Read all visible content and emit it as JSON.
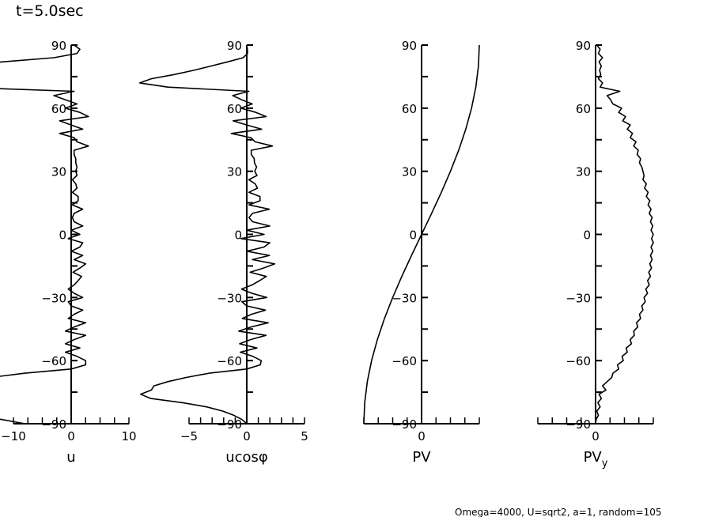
{
  "title": "t=5.0sec",
  "footer": "Omega=4000, U=sqrt2, a=1, random=105",
  "chart_data": [
    {
      "type": "line",
      "xlabel": "u",
      "ylabel": "",
      "xlim": [
        -10,
        10
      ],
      "ylim": [
        -90,
        90
      ],
      "xticks": [
        "-10",
        "0",
        "10"
      ],
      "yticks": [
        "90",
        "60",
        "30",
        "0",
        "-30",
        "-60",
        "-90"
      ],
      "lat": [
        90,
        88,
        86,
        84,
        82,
        80,
        78,
        76,
        74,
        72,
        70,
        68,
        66,
        64,
        62,
        60,
        58,
        56,
        54,
        52,
        50,
        48,
        46,
        44,
        42,
        40,
        38,
        36,
        34,
        32,
        30,
        28,
        26,
        24,
        22,
        20,
        18,
        16,
        14,
        12,
        10,
        8,
        6,
        4,
        2,
        0,
        -2,
        -4,
        -6,
        -8,
        -10,
        -12,
        -14,
        -16,
        -18,
        -20,
        -22,
        -24,
        -26,
        -28,
        -30,
        -32,
        -34,
        -36,
        -38,
        -40,
        -42,
        -44,
        -46,
        -48,
        -50,
        -52,
        -54,
        -56,
        -58,
        -60,
        -62,
        -64,
        -66,
        -68,
        -70,
        -72,
        -74,
        -76,
        -78,
        -80,
        -82,
        -84,
        -86,
        -88,
        -90
      ],
      "values": [
        0.5,
        1.5,
        1,
        -3,
        -12,
        -18,
        -22,
        -26,
        -30,
        -30,
        -20,
        0.5,
        -3,
        -1,
        1,
        -1,
        1.5,
        3,
        -2,
        0,
        2,
        -2,
        0.5,
        1,
        3,
        0.5,
        0.5,
        0.8,
        0.8,
        1,
        0.8,
        1,
        0.2,
        0.8,
        1,
        0.2,
        1.2,
        1.2,
        0.2,
        2,
        0.5,
        0.2,
        0.5,
        2,
        0,
        1.5,
        -0.5,
        2,
        1.5,
        0,
        2,
        0.5,
        2.5,
        1.5,
        0.3,
        1.8,
        1.2,
        0.5,
        -0.5,
        0.5,
        2,
        -0.5,
        0,
        2,
        0.5,
        -0.5,
        2.5,
        0.5,
        -1,
        2.5,
        0.5,
        -1,
        1.5,
        -1,
        1,
        2.5,
        2.5,
        0,
        -8,
        -14,
        -20,
        -26,
        -30,
        -38,
        -40,
        -32,
        -25,
        -20,
        -16,
        -12,
        -8
      ]
    },
    {
      "type": "line",
      "xlabel": "ucosφ",
      "xlim": [
        -5,
        5
      ],
      "ylim": [
        -90,
        90
      ],
      "xticks": [
        "-5",
        "0",
        "5"
      ],
      "yticks": [
        "90",
        "60",
        "30",
        "0",
        "-30",
        "-60",
        "-90"
      ]
    },
    {
      "type": "line",
      "xlabel": "PV",
      "xlim": [
        -1,
        1
      ],
      "ylim": [
        -90,
        90
      ],
      "xticks": [
        "0"
      ],
      "yticks": [
        "90",
        "60",
        "30",
        "0",
        "-30",
        "-60",
        "-90"
      ],
      "lat": [
        90,
        80,
        70,
        60,
        50,
        40,
        30,
        20,
        10,
        0,
        -10,
        -20,
        -30,
        -40,
        -50,
        -60,
        -70,
        -80,
        -90
      ],
      "values": [
        1.0,
        0.985,
        0.94,
        0.866,
        0.766,
        0.643,
        0.5,
        0.342,
        0.174,
        0,
        -0.174,
        -0.342,
        -0.5,
        -0.643,
        -0.766,
        -0.866,
        -0.94,
        -0.985,
        -1.0
      ]
    },
    {
      "type": "line",
      "xlabel": "PV",
      "xlabel_sub": "y",
      "xlim": [
        -1,
        1
      ],
      "ylim": [
        -90,
        90
      ],
      "xticks": [
        "0"
      ],
      "yticks": [
        "90",
        "60",
        "30",
        "0",
        "-30",
        "-60",
        "-90"
      ],
      "lat_step": 2,
      "values": [
        0.02,
        0.08,
        0.05,
        0.12,
        0.06,
        0.1,
        0.07,
        0.09,
        0.05,
        0.12,
        0.08,
        0.42,
        0.2,
        0.26,
        0.3,
        0.45,
        0.4,
        0.52,
        0.47,
        0.6,
        0.55,
        0.64,
        0.6,
        0.7,
        0.66,
        0.74,
        0.72,
        0.78,
        0.76,
        0.8,
        0.82,
        0.84,
        0.82,
        0.88,
        0.85,
        0.91,
        0.88,
        0.94,
        0.91,
        0.96,
        0.93,
        0.98,
        0.95,
        0.99,
        0.96,
        1.0,
        0.97,
        1.0,
        0.96,
        0.99,
        0.95,
        0.98,
        0.94,
        0.97,
        0.92,
        0.95,
        0.9,
        0.93,
        0.87,
        0.9,
        0.84,
        0.86,
        0.8,
        0.82,
        0.76,
        0.78,
        0.71,
        0.73,
        0.66,
        0.67,
        0.6,
        0.62,
        0.53,
        0.55,
        0.46,
        0.48,
        0.38,
        0.4,
        0.3,
        0.28,
        0.2,
        0.12,
        0.18,
        0.06,
        0.1,
        0.04,
        0.08,
        0.02,
        0.05,
        0.01,
        0.0
      ]
    }
  ]
}
